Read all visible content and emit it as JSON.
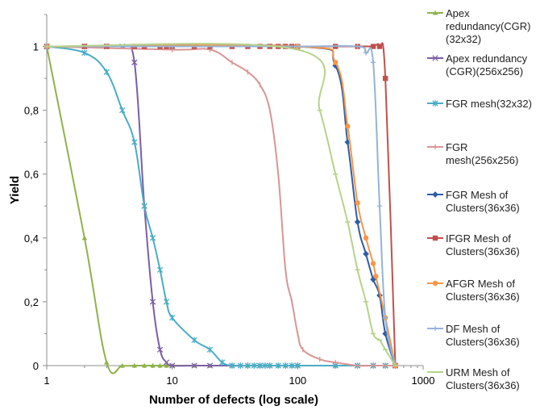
{
  "chart_data": {
    "type": "line",
    "title": "",
    "xlabel": "Number of defects (log scale)",
    "ylabel": "Yield",
    "x_scale": "log",
    "xlim": [
      1,
      1000
    ],
    "ylim": [
      0,
      1.1
    ],
    "x_ticks": [
      1,
      10,
      100,
      1000
    ],
    "x_tick_labels": [
      "1",
      "10",
      "100",
      "1000"
    ],
    "y_ticks": [
      0,
      0.2,
      0.4,
      0.6,
      0.8,
      1
    ],
    "y_tick_labels": [
      "0",
      "0,2",
      "0,4",
      "0,6",
      "0,8",
      "1"
    ],
    "grid": false,
    "legend_position": "right",
    "series": [
      {
        "name": "Apex redundancy(CGR)(32x32)",
        "legend_lines": [
          "Apex",
          "redundancy(CGR)",
          "(32x32)"
        ],
        "color": "#8FB24A",
        "marker": "triangle",
        "points": [
          [
            1,
            1
          ],
          [
            2,
            0.4
          ],
          [
            3,
            0.01
          ],
          [
            4,
            0
          ],
          [
            5,
            0
          ],
          [
            6,
            0
          ],
          [
            7,
            0
          ],
          [
            8,
            0
          ],
          [
            9,
            0
          ],
          [
            10,
            0
          ],
          [
            15,
            0
          ],
          [
            20,
            0
          ],
          [
            30,
            0
          ],
          [
            40,
            0
          ],
          [
            50,
            0
          ],
          [
            60,
            0
          ],
          [
            70,
            0
          ],
          [
            80,
            0
          ],
          [
            90,
            0
          ],
          [
            100,
            0
          ],
          [
            200,
            0
          ],
          [
            300,
            0
          ],
          [
            400,
            0
          ],
          [
            500,
            0
          ],
          [
            600,
            0
          ]
        ]
      },
      {
        "name": "Apex redundancy (CGR)(256x256)",
        "legend_lines": [
          "Apex redundancy",
          "(CGR)(256x256)"
        ],
        "color": "#7B5EA7",
        "marker": "x",
        "points": [
          [
            1,
            1
          ],
          [
            2,
            1
          ],
          [
            3,
            1
          ],
          [
            4,
            1
          ],
          [
            5,
            0.95
          ],
          [
            6,
            0.5
          ],
          [
            7,
            0.2
          ],
          [
            8,
            0.05
          ],
          [
            9,
            0.01
          ],
          [
            10,
            0
          ],
          [
            15,
            0
          ],
          [
            20,
            0
          ],
          [
            30,
            0
          ],
          [
            50,
            0
          ],
          [
            100,
            0
          ],
          [
            200,
            0
          ],
          [
            300,
            0
          ],
          [
            400,
            0
          ],
          [
            500,
            0
          ],
          [
            600,
            0
          ]
        ]
      },
      {
        "name": "FGR mesh(32x32)",
        "legend_lines": [
          "FGR mesh(32x32)"
        ],
        "color": "#4BACC6",
        "marker": "star",
        "points": [
          [
            1,
            1
          ],
          [
            2,
            0.98
          ],
          [
            3,
            0.92
          ],
          [
            4,
            0.8
          ],
          [
            5,
            0.7
          ],
          [
            6,
            0.5
          ],
          [
            7,
            0.4
          ],
          [
            8,
            0.3
          ],
          [
            9,
            0.2
          ],
          [
            10,
            0.15
          ],
          [
            15,
            0.08
          ],
          [
            20,
            0.05
          ],
          [
            25,
            0.01
          ],
          [
            30,
            0
          ],
          [
            35,
            0
          ],
          [
            40,
            0
          ],
          [
            45,
            0
          ],
          [
            50,
            0
          ],
          [
            55,
            0
          ],
          [
            60,
            0
          ],
          [
            70,
            0
          ],
          [
            80,
            0
          ],
          [
            90,
            0
          ],
          [
            100,
            0
          ],
          [
            200,
            0
          ],
          [
            300,
            0
          ],
          [
            400,
            0
          ],
          [
            500,
            0
          ],
          [
            600,
            0
          ]
        ]
      },
      {
        "name": "FGR mesh(256x256)",
        "legend_lines": [
          "FGR",
          "mesh(256x256)"
        ],
        "color": "#D99594",
        "marker": "dash",
        "points": [
          [
            1,
            1
          ],
          [
            10,
            0.99
          ],
          [
            20,
            0.99
          ],
          [
            30,
            0.95
          ],
          [
            40,
            0.92
          ],
          [
            50,
            0.88
          ],
          [
            60,
            0.8
          ],
          [
            70,
            0.6
          ],
          [
            80,
            0.3
          ],
          [
            90,
            0.2
          ],
          [
            100,
            0.1
          ],
          [
            110,
            0.05
          ],
          [
            150,
            0.02
          ],
          [
            200,
            0.01
          ],
          [
            300,
            0
          ],
          [
            400,
            0
          ],
          [
            500,
            0
          ],
          [
            600,
            0
          ]
        ]
      },
      {
        "name": "FGR Mesh of Clusters(36x36)",
        "legend_lines": [
          "FGR Mesh of",
          "Clusters(36x36)"
        ],
        "color": "#2E5FA3",
        "marker": "diamond",
        "points": [
          [
            1,
            1
          ],
          [
            100,
            1
          ],
          [
            200,
            0.94
          ],
          [
            250,
            0.7
          ],
          [
            300,
            0.45
          ],
          [
            350,
            0.35
          ],
          [
            400,
            0.27
          ],
          [
            450,
            0.22
          ],
          [
            500,
            0.1
          ],
          [
            600,
            0
          ]
        ]
      },
      {
        "name": "IFGR Mesh of Clusters(36x36)",
        "legend_lines": [
          "IFGR Mesh of",
          "Clusters(36x36)"
        ],
        "color": "#C0504D",
        "marker": "square",
        "points": [
          [
            1,
            1
          ],
          [
            2,
            1
          ],
          [
            3,
            1
          ],
          [
            5,
            1
          ],
          [
            6,
            1
          ],
          [
            8,
            1
          ],
          [
            9,
            1
          ],
          [
            10,
            1
          ],
          [
            15,
            1
          ],
          [
            20,
            1
          ],
          [
            30,
            1
          ],
          [
            40,
            1
          ],
          [
            50,
            1
          ],
          [
            60,
            1
          ],
          [
            70,
            1
          ],
          [
            80,
            1
          ],
          [
            90,
            1
          ],
          [
            100,
            1
          ],
          [
            200,
            1
          ],
          [
            300,
            1
          ],
          [
            400,
            1
          ],
          [
            450,
            1
          ],
          [
            500,
            0.9
          ],
          [
            600,
            0
          ]
        ]
      },
      {
        "name": "AFGR Mesh of Clusters(36x36)",
        "legend_lines": [
          "AFGR Mesh of",
          "Clusters(36x36)"
        ],
        "color": "#F79646",
        "marker": "circle",
        "points": [
          [
            1,
            1
          ],
          [
            100,
            1
          ],
          [
            200,
            0.95
          ],
          [
            250,
            0.75
          ],
          [
            300,
            0.51
          ],
          [
            350,
            0.4
          ],
          [
            400,
            0.32
          ],
          [
            420,
            0.28
          ],
          [
            500,
            0.15
          ],
          [
            600,
            0
          ]
        ]
      },
      {
        "name": "DF Mesh of Clusters(36x36)",
        "legend_lines": [
          "DF Mesh of",
          "Clusters(36x36)"
        ],
        "color": "#95B3D7",
        "marker": "plus",
        "points": [
          [
            1,
            1
          ],
          [
            10,
            1
          ],
          [
            100,
            1
          ],
          [
            300,
            1
          ],
          [
            350,
            0.98
          ],
          [
            400,
            0.95
          ],
          [
            450,
            0.5
          ],
          [
            500,
            0.15
          ],
          [
            600,
            0
          ]
        ]
      },
      {
        "name": "URM Mesh of Clusters(36x36)",
        "legend_lines": [
          "URM Mesh of",
          "Clusters(36x36)"
        ],
        "color": "#B4D389",
        "marker": "hline",
        "points": [
          [
            1,
            1
          ],
          [
            100,
            0.99
          ],
          [
            150,
            0.8
          ],
          [
            200,
            0.6
          ],
          [
            250,
            0.45
          ],
          [
            300,
            0.3
          ],
          [
            350,
            0.2
          ],
          [
            400,
            0.1
          ],
          [
            450,
            0.08
          ],
          [
            500,
            0.05
          ],
          [
            600,
            0
          ]
        ]
      }
    ]
  }
}
